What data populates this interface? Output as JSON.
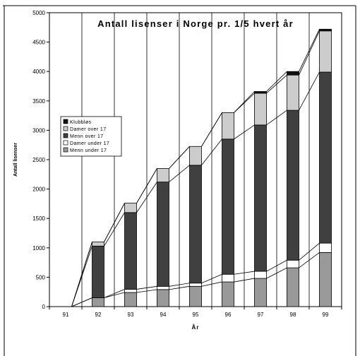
{
  "chart_data": {
    "type": "bar",
    "stacked": true,
    "title": "Antall lisenser i Norge pr. 1/5 hvert år",
    "xlabel": "År",
    "ylabel": "Antall lisenser",
    "ylim": [
      0,
      5000
    ],
    "yticks": [
      0,
      500,
      1000,
      1500,
      2000,
      2500,
      3000,
      3500,
      4000,
      4500,
      5000
    ],
    "categories": [
      "91",
      "92",
      "93",
      "94",
      "95",
      "96",
      "97",
      "98",
      "99"
    ],
    "series": [
      {
        "name": "Menn under 17",
        "color": "#999999",
        "values": [
          0,
          150,
          240,
          290,
          345,
          420,
          480,
          660,
          920
        ]
      },
      {
        "name": "Damer under 17",
        "color": "#ffffff",
        "values": [
          0,
          0,
          55,
          55,
          55,
          130,
          120,
          130,
          160
        ]
      },
      {
        "name": "Menn over 17",
        "color": "#404040",
        "values": [
          0,
          880,
          1305,
          1775,
          2005,
          2300,
          2490,
          2550,
          2910
        ]
      },
      {
        "name": "Damer over 17",
        "color": "#cccccc",
        "values": [
          0,
          70,
          160,
          230,
          320,
          450,
          540,
          600,
          700
        ]
      },
      {
        "name": "Klubbløs",
        "color": "#111111",
        "values": [
          0,
          0,
          0,
          0,
          0,
          0,
          30,
          60,
          30
        ]
      }
    ],
    "legend_order": [
      "Klubbløs",
      "Damer over 17",
      "Menn over 17",
      "Damer under 17",
      "Menn under 17"
    ],
    "legend_position": "left",
    "grid": "vertical"
  }
}
